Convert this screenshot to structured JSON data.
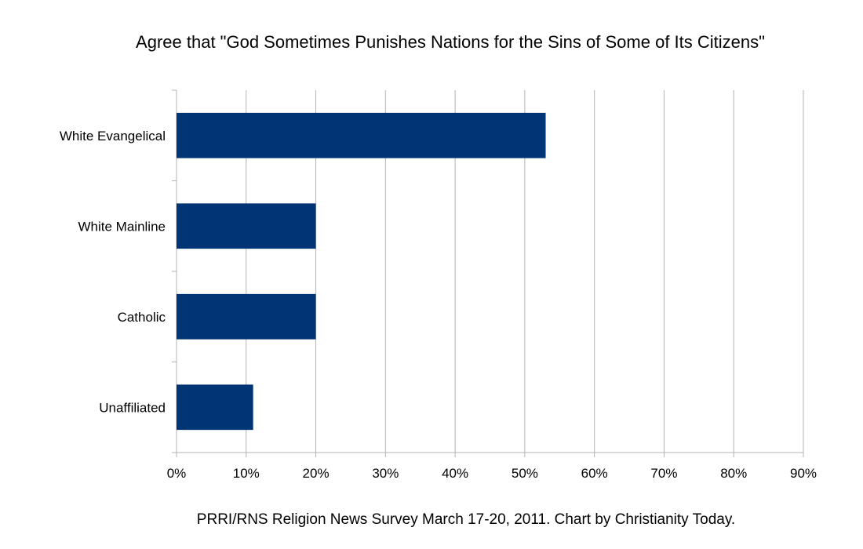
{
  "chart_data": {
    "type": "bar",
    "orientation": "horizontal",
    "title": "Agree that \"God Sometimes Punishes Nations for the Sins of Some of Its Citizens\"",
    "categories": [
      "White Evangelical",
      "White Mainline",
      "Catholic",
      "Unaffiliated"
    ],
    "values": [
      53,
      20,
      20,
      11
    ],
    "xlim": [
      0,
      90
    ],
    "xticks": [
      0,
      10,
      20,
      30,
      40,
      50,
      60,
      70,
      80,
      90
    ],
    "tick_labels": [
      "0%",
      "10%",
      "20%",
      "30%",
      "40%",
      "50%",
      "60%",
      "70%",
      "80%",
      "90%"
    ],
    "bar_color": "#003575",
    "grid": true,
    "legend": "none",
    "source_note": "PRRI/RNS Religion News Survey March 17-20, 2011.  Chart by Christianity Today."
  }
}
